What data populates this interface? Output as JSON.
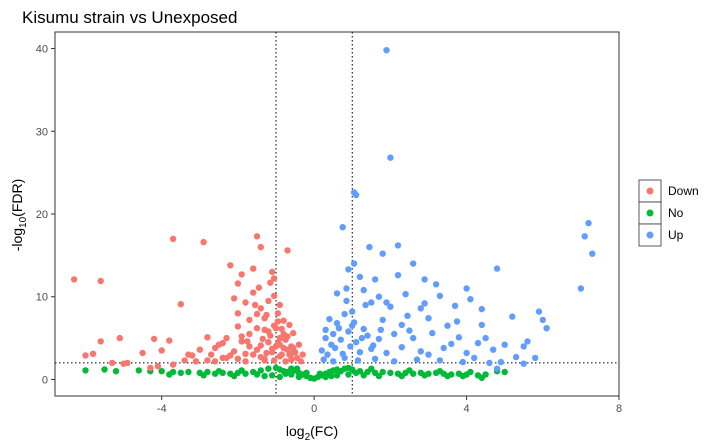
{
  "chart_data": {
    "type": "scatter",
    "title": "Kisumu strain vs Unexposed",
    "xlabel": {
      "base": "log",
      "sub": "2",
      "rest": "(FC)"
    },
    "ylabel": {
      "pre": "-log",
      "sub": "10",
      "rest": "(FDR)"
    },
    "xlim": [
      -6.8,
      8
    ],
    "ylim": [
      -2,
      42
    ],
    "xticks": [
      -4,
      0,
      4,
      8
    ],
    "xtick_labels": [
      "-4",
      "0",
      "4",
      "8"
    ],
    "yticks": [
      0,
      10,
      20,
      30,
      40
    ],
    "ytick_labels": [
      "0",
      "10",
      "20",
      "30",
      "40"
    ],
    "grid": false,
    "legend_position": "right",
    "thresholds": {
      "vlines": [
        -1,
        1
      ],
      "hline": 2
    },
    "series": [
      {
        "name": "Down",
        "color": "#F8766D",
        "points": [
          [
            -6.3,
            12.1
          ],
          [
            -5.6,
            11.9
          ],
          [
            -6.0,
            2.9
          ],
          [
            -5.8,
            3.1
          ],
          [
            -5.6,
            4.6
          ],
          [
            -5.3,
            2.0
          ],
          [
            -5.1,
            5.0
          ],
          [
            -5.0,
            1.9
          ],
          [
            -4.9,
            2.0
          ],
          [
            -4.5,
            3.2
          ],
          [
            -4.3,
            1.4
          ],
          [
            -4.2,
            4.9
          ],
          [
            -4.1,
            1.6
          ],
          [
            -4.0,
            3.5
          ],
          [
            -3.8,
            4.7
          ],
          [
            -3.7,
            1.8
          ],
          [
            -3.7,
            17.0
          ],
          [
            -3.5,
            9.1
          ],
          [
            -3.4,
            2.3
          ],
          [
            -3.2,
            2.9
          ],
          [
            -3.0,
            3.6
          ],
          [
            -2.9,
            16.6
          ],
          [
            -2.8,
            5.1
          ],
          [
            -2.7,
            3.0
          ],
          [
            -2.6,
            2.2
          ],
          [
            -2.5,
            4.2
          ],
          [
            -2.4,
            2.6
          ],
          [
            -2.3,
            5.0
          ],
          [
            -2.2,
            2.9
          ],
          [
            -2.2,
            13.8
          ],
          [
            -2.1,
            9.8
          ],
          [
            -2.0,
            11.6
          ],
          [
            -2.0,
            8.0
          ],
          [
            -1.9,
            12.7
          ],
          [
            -1.9,
            4.6
          ],
          [
            -1.8,
            9.3
          ],
          [
            -1.8,
            3.1
          ],
          [
            -1.7,
            7.2
          ],
          [
            -1.7,
            5.5
          ],
          [
            -1.6,
            13.4
          ],
          [
            -1.6,
            10.5
          ],
          [
            -1.5,
            17.3
          ],
          [
            -1.5,
            6.2
          ],
          [
            -1.5,
            3.6
          ],
          [
            -1.4,
            16.0
          ],
          [
            -1.4,
            8.6
          ],
          [
            -1.4,
            4.1
          ],
          [
            -1.3,
            7.4
          ],
          [
            -1.3,
            2.5
          ],
          [
            -1.2,
            9.5
          ],
          [
            -1.2,
            5.8
          ],
          [
            -1.1,
            13.0
          ],
          [
            -1.1,
            3.3
          ],
          [
            -1.05,
            12.2
          ],
          [
            -1.05,
            6.5
          ],
          [
            -1.05,
            2.3
          ],
          [
            -0.95,
            4.4
          ],
          [
            -0.9,
            9.0
          ],
          [
            -0.9,
            5.0
          ],
          [
            -0.9,
            2.8
          ],
          [
            -0.8,
            7.1
          ],
          [
            -0.8,
            3.8
          ],
          [
            -0.75,
            2.2
          ],
          [
            -0.7,
            15.6
          ],
          [
            -0.7,
            5.2
          ],
          [
            -0.65,
            3.0
          ],
          [
            -0.6,
            4.0
          ],
          [
            -0.6,
            2.4
          ],
          [
            -0.55,
            5.6
          ],
          [
            -0.5,
            3.3
          ],
          [
            -0.45,
            2.6
          ],
          [
            -0.4,
            4.2
          ],
          [
            -0.35,
            2.2
          ],
          [
            -0.3,
            3.0
          ],
          [
            -1.9,
            5.2
          ],
          [
            -1.7,
            4.0
          ],
          [
            -1.5,
            7.9
          ],
          [
            -1.3,
            6.0
          ],
          [
            -1.2,
            4.5
          ],
          [
            -1.1,
            3.7
          ],
          [
            -0.95,
            7.0
          ],
          [
            -0.85,
            6.1
          ],
          [
            -0.75,
            4.8
          ],
          [
            -0.65,
            6.6
          ],
          [
            -0.55,
            3.8
          ],
          [
            -1.6,
            3.0
          ],
          [
            -1.4,
            2.7
          ],
          [
            -1.25,
            3.2
          ],
          [
            -1.0,
            4.0
          ],
          [
            -2.1,
            3.4
          ],
          [
            -2.3,
            2.6
          ],
          [
            -2.6,
            3.8
          ],
          [
            -1.8,
            2.2
          ],
          [
            -0.85,
            3.0
          ],
          [
            -1.15,
            5.3
          ],
          [
            -1.35,
            4.9
          ],
          [
            -0.95,
            8.0
          ],
          [
            -1.05,
            10.1
          ],
          [
            -1.25,
            7.8
          ],
          [
            -1.45,
            11.1
          ],
          [
            -1.0,
            6.2
          ],
          [
            -0.8,
            5.5
          ],
          [
            -0.7,
            3.6
          ],
          [
            -2.0,
            6.4
          ],
          [
            -1.55,
            9.0
          ],
          [
            -1.15,
            11.7
          ],
          [
            -2.4,
            4.4
          ],
          [
            -2.8,
            2.3
          ],
          [
            -3.1,
            2.2
          ],
          [
            -3.3,
            3.0
          ],
          [
            -2.0,
            2.5
          ],
          [
            -1.3,
            2.3
          ],
          [
            -0.6,
            3.1
          ],
          [
            -1.75,
            4.6
          ],
          [
            -0.9,
            4.2
          ]
        ]
      },
      {
        "name": "No",
        "color": "#00BA38",
        "points": [
          [
            -6.0,
            1.1
          ],
          [
            -5.5,
            1.2
          ],
          [
            -5.2,
            1.0
          ],
          [
            -4.6,
            1.1
          ],
          [
            -4.3,
            1.0
          ],
          [
            -4.0,
            1.0
          ],
          [
            -3.7,
            0.9
          ],
          [
            -3.5,
            0.8
          ],
          [
            -3.3,
            0.9
          ],
          [
            -3.0,
            0.8
          ],
          [
            -2.8,
            0.9
          ],
          [
            -2.6,
            0.7
          ],
          [
            -2.4,
            0.8
          ],
          [
            -2.2,
            0.7
          ],
          [
            -2.0,
            0.8
          ],
          [
            -1.8,
            0.7
          ],
          [
            -1.6,
            0.9
          ],
          [
            -1.4,
            1.1
          ],
          [
            -1.2,
            1.3
          ],
          [
            -1.0,
            1.4
          ],
          [
            -0.9,
            1.2
          ],
          [
            -0.8,
            1.0
          ],
          [
            -0.7,
            0.9
          ],
          [
            -0.6,
            1.3
          ],
          [
            -0.5,
            1.1
          ],
          [
            -0.4,
            0.8
          ],
          [
            -0.3,
            0.6
          ],
          [
            -0.2,
            0.4
          ],
          [
            -0.1,
            0.2
          ],
          [
            0.0,
            0.1
          ],
          [
            0.1,
            0.3
          ],
          [
            0.2,
            0.5
          ],
          [
            0.3,
            0.7
          ],
          [
            0.4,
            0.9
          ],
          [
            0.5,
            1.1
          ],
          [
            0.6,
            1.2
          ],
          [
            0.7,
            1.0
          ],
          [
            0.8,
            1.3
          ],
          [
            0.9,
            1.4
          ],
          [
            1.0,
            1.2
          ],
          [
            1.2,
            1.0
          ],
          [
            1.4,
            0.9
          ],
          [
            1.6,
            0.8
          ],
          [
            1.8,
            0.9
          ],
          [
            2.0,
            0.8
          ],
          [
            2.2,
            0.7
          ],
          [
            2.4,
            0.8
          ],
          [
            2.6,
            0.7
          ],
          [
            2.8,
            0.8
          ],
          [
            3.0,
            0.7
          ],
          [
            3.2,
            0.8
          ],
          [
            3.4,
            0.7
          ],
          [
            3.6,
            0.6
          ],
          [
            3.8,
            0.7
          ],
          [
            4.0,
            0.6
          ],
          [
            4.3,
            0.5
          ],
          [
            4.5,
            0.6
          ],
          [
            4.8,
            1.0
          ],
          [
            5.0,
            0.9
          ],
          [
            4.4,
            0.2
          ],
          [
            -2.9,
            0.5
          ],
          [
            -2.1,
            0.4
          ],
          [
            -1.5,
            0.6
          ],
          [
            -1.1,
            0.5
          ],
          [
            -0.9,
            0.3
          ],
          [
            -0.6,
            0.6
          ],
          [
            -0.4,
            0.3
          ],
          [
            0.3,
            0.3
          ],
          [
            0.6,
            0.5
          ],
          [
            0.9,
            0.6
          ],
          [
            1.3,
            0.5
          ],
          [
            1.7,
            0.4
          ],
          [
            2.3,
            0.4
          ],
          [
            2.9,
            0.5
          ],
          [
            3.5,
            0.4
          ],
          [
            -1.3,
            0.4
          ],
          [
            1.1,
            0.8
          ],
          [
            -0.2,
            0.8
          ],
          [
            0.45,
            0.4
          ],
          [
            -0.75,
            0.7
          ],
          [
            -3.8,
            0.6
          ],
          [
            3.9,
            0.4
          ],
          [
            1.5,
            1.3
          ],
          [
            -1.9,
            1.1
          ],
          [
            2.5,
            1.1
          ],
          [
            -2.5,
            1.0
          ],
          [
            3.3,
            1.0
          ],
          [
            -0.45,
            1.3
          ],
          [
            0.15,
            0.7
          ],
          [
            4.1,
            0.9
          ]
        ]
      },
      {
        "name": "Up",
        "color": "#619CFF",
        "points": [
          [
            1.9,
            39.8
          ],
          [
            2.0,
            26.8
          ],
          [
            1.05,
            22.6
          ],
          [
            1.1,
            22.3
          ],
          [
            0.75,
            18.4
          ],
          [
            7.2,
            18.9
          ],
          [
            7.1,
            17.3
          ],
          [
            7.3,
            15.2
          ],
          [
            7.0,
            11.0
          ],
          [
            1.45,
            16.0
          ],
          [
            1.8,
            15.2
          ],
          [
            2.2,
            16.2
          ],
          [
            2.6,
            14.0
          ],
          [
            1.05,
            14.0
          ],
          [
            0.9,
            13.3
          ],
          [
            1.2,
            12.4
          ],
          [
            1.6,
            12.1
          ],
          [
            2.9,
            12.1
          ],
          [
            3.2,
            11.5
          ],
          [
            4.0,
            11.0
          ],
          [
            4.8,
            13.4
          ],
          [
            1.3,
            10.8
          ],
          [
            1.7,
            10.0
          ],
          [
            2.4,
            10.3
          ],
          [
            3.3,
            10.1
          ],
          [
            4.1,
            9.7
          ],
          [
            0.85,
            9.5
          ],
          [
            1.5,
            9.3
          ],
          [
            2.0,
            8.8
          ],
          [
            2.8,
            8.6
          ],
          [
            3.7,
            8.9
          ],
          [
            5.9,
            8.2
          ],
          [
            0.4,
            7.3
          ],
          [
            0.6,
            6.8
          ],
          [
            0.8,
            7.9
          ],
          [
            1.0,
            6.5
          ],
          [
            1.3,
            6.1
          ],
          [
            1.8,
            7.2
          ],
          [
            2.3,
            6.6
          ],
          [
            3.0,
            7.4
          ],
          [
            3.5,
            6.5
          ],
          [
            4.4,
            6.6
          ],
          [
            5.2,
            7.6
          ],
          [
            6.1,
            6.2
          ],
          [
            6.0,
            7.2
          ],
          [
            0.3,
            5.0
          ],
          [
            0.5,
            5.5
          ],
          [
            0.7,
            4.8
          ],
          [
            0.9,
            5.8
          ],
          [
            1.1,
            4.5
          ],
          [
            1.4,
            5.3
          ],
          [
            1.7,
            4.9
          ],
          [
            2.1,
            5.5
          ],
          [
            2.6,
            5.0
          ],
          [
            3.1,
            5.6
          ],
          [
            3.8,
            5.1
          ],
          [
            4.5,
            5.0
          ],
          [
            5.0,
            4.2
          ],
          [
            5.6,
            4.6
          ],
          [
            0.2,
            3.5
          ],
          [
            0.35,
            3.0
          ],
          [
            0.55,
            3.8
          ],
          [
            0.75,
            3.1
          ],
          [
            0.95,
            4.0
          ],
          [
            1.2,
            3.3
          ],
          [
            1.5,
            3.7
          ],
          [
            1.9,
            3.2
          ],
          [
            2.3,
            3.9
          ],
          [
            2.8,
            3.4
          ],
          [
            3.4,
            3.8
          ],
          [
            4.0,
            3.2
          ],
          [
            4.7,
            3.6
          ],
          [
            5.3,
            2.7
          ],
          [
            5.8,
            2.6
          ],
          [
            0.25,
            2.4
          ],
          [
            0.5,
            2.2
          ],
          [
            0.8,
            2.6
          ],
          [
            1.15,
            2.3
          ],
          [
            1.6,
            2.5
          ],
          [
            2.1,
            2.2
          ],
          [
            2.7,
            2.4
          ],
          [
            3.3,
            2.3
          ],
          [
            3.9,
            2.1
          ],
          [
            4.6,
            2.0
          ],
          [
            4.9,
            2.1
          ],
          [
            5.5,
            1.9
          ],
          [
            4.8,
            1.3
          ],
          [
            0.65,
            6.2
          ],
          [
            1.0,
            8.2
          ],
          [
            1.25,
            5.0
          ],
          [
            0.45,
            4.2
          ],
          [
            2.5,
            5.9
          ],
          [
            3.6,
            4.3
          ],
          [
            4.2,
            2.6
          ],
          [
            1.35,
            9.0
          ],
          [
            0.6,
            10.4
          ],
          [
            1.9,
            9.3
          ],
          [
            2.2,
            12.6
          ],
          [
            3.0,
            3.0
          ],
          [
            4.3,
            4.4
          ],
          [
            1.05,
            6.9
          ],
          [
            0.85,
            11.0
          ],
          [
            1.75,
            6.0
          ],
          [
            2.9,
            9.2
          ],
          [
            5.5,
            4.0
          ],
          [
            0.3,
            6.0
          ],
          [
            1.55,
            4.1
          ],
          [
            2.45,
            7.7
          ],
          [
            3.75,
            7.0
          ],
          [
            4.4,
            8.5
          ]
        ]
      }
    ]
  }
}
